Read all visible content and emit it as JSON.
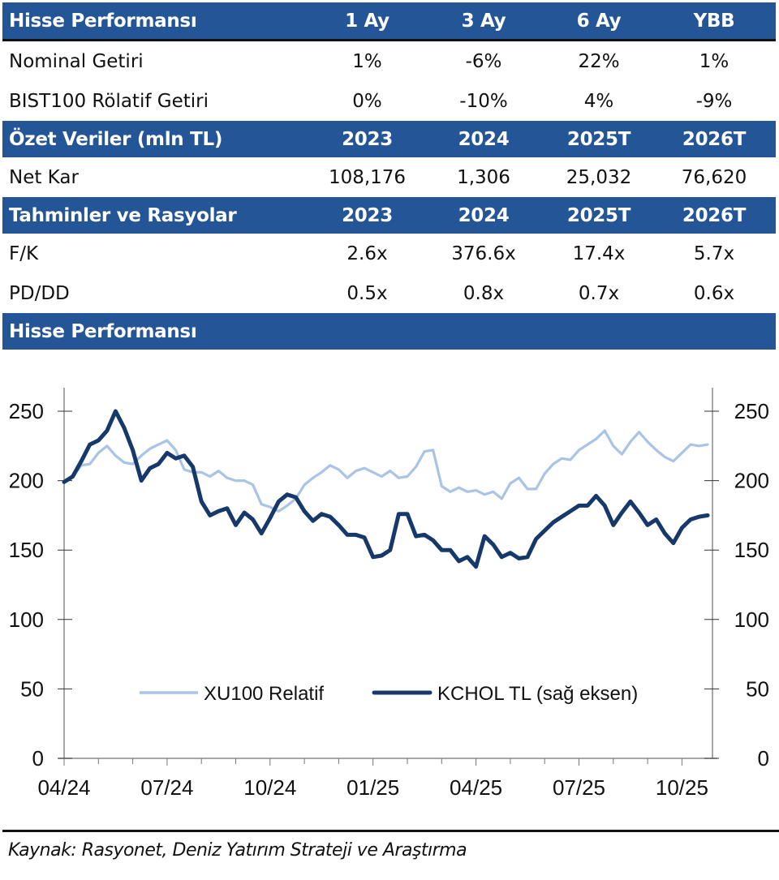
{
  "performance_table": {
    "header": [
      "Hisse Performansı",
      "1 Ay",
      "3 Ay",
      "6 Ay",
      "YBB"
    ],
    "rows": [
      [
        "Nominal Getiri",
        "1%",
        "-6%",
        "22%",
        "1%"
      ],
      [
        "BIST100 Rölatif Getiri",
        "0%",
        "-10%",
        "4%",
        "-9%"
      ]
    ]
  },
  "summary_table": {
    "header": [
      "Özet Veriler (mln TL)",
      "2023",
      "2024",
      "2025T",
      "2026T"
    ],
    "rows": [
      [
        "Net Kar",
        "108,176",
        "1,306",
        "25,032",
        "76,620"
      ]
    ]
  },
  "ratios_table": {
    "header": [
      "Tahminler ve Rasyolar",
      "2023",
      "2024",
      "2025T",
      "2026T"
    ],
    "rows": [
      [
        "F/K",
        "2.6x",
        "376.6x",
        "17.4x",
        "5.7x"
      ],
      [
        "PD/DD",
        "0.5x",
        "0.8x",
        "0.7x",
        "0.6x"
      ]
    ]
  },
  "chart_section_title": "Hisse Performansı",
  "colors": {
    "band": "#245596",
    "xu100": "#a9c4e4",
    "kchol": "#17386b"
  },
  "chart_data": {
    "type": "line",
    "title": "Hisse Performansı",
    "xlabel": "",
    "ylabel_left": "",
    "ylabel_right": "",
    "x_tick_labels": [
      "04/24",
      "07/24",
      "10/24",
      "01/25",
      "04/25",
      "07/25",
      "10/25"
    ],
    "x_range": [
      "04/24",
      "11/25"
    ],
    "ylim_left": [
      0,
      250
    ],
    "ylim_right": [
      0,
      250
    ],
    "y_ticks": [
      0,
      50,
      100,
      150,
      200,
      250
    ],
    "legend": [
      "XU100 Relatif",
      "KCHOL TL (sağ eksen)"
    ],
    "legend_position": "bottom-center inside plot",
    "grid": false,
    "x_months_from_start": [
      0,
      0.25,
      0.5,
      0.75,
      1.0,
      1.25,
      1.5,
      1.75,
      2.0,
      2.25,
      2.5,
      2.75,
      3.0,
      3.25,
      3.5,
      3.75,
      4.0,
      4.25,
      4.5,
      4.75,
      5.0,
      5.25,
      5.5,
      5.75,
      6.0,
      6.25,
      6.5,
      6.75,
      7.0,
      7.25,
      7.5,
      7.75,
      8.0,
      8.25,
      8.5,
      8.75,
      9.0,
      9.25,
      9.5,
      9.75,
      10.0,
      10.25,
      10.5,
      10.75,
      11.0,
      11.25,
      11.5,
      11.75,
      12.0,
      12.25,
      12.5,
      12.75,
      13.0,
      13.25,
      13.5,
      13.75,
      14.0,
      14.25,
      14.5,
      14.75,
      15.0,
      15.25,
      15.5,
      15.75,
      16.0,
      16.25,
      16.5,
      16.75,
      17.0,
      17.25,
      17.5,
      17.75,
      18.0,
      18.25,
      18.5,
      18.75
    ],
    "series": [
      {
        "name": "XU100 Relatif",
        "axis": "left",
        "values": [
          200,
          203,
          211,
          212,
          220,
          225,
          218,
          213,
          212,
          218,
          223,
          226,
          229,
          222,
          208,
          206,
          206,
          203,
          207,
          202,
          200,
          200,
          197,
          183,
          181,
          178,
          182,
          187,
          197,
          202,
          206,
          211,
          208,
          202,
          207,
          209,
          206,
          203,
          207,
          202,
          203,
          210,
          221,
          222,
          196,
          192,
          195,
          192,
          193,
          190,
          192,
          187,
          198,
          202,
          194,
          194,
          205,
          212,
          216,
          215,
          222,
          226,
          230,
          236,
          225,
          219,
          228,
          235,
          228,
          222,
          217,
          214,
          220,
          226,
          225,
          226
        ]
      },
      {
        "name": "KCHOL TL (sağ eksen)",
        "axis": "right",
        "values": [
          199,
          203,
          214,
          226,
          229,
          236,
          250,
          238,
          222,
          200,
          209,
          212,
          220,
          216,
          218,
          210,
          185,
          175,
          178,
          180,
          168,
          177,
          172,
          162,
          173,
          185,
          190,
          188,
          178,
          171,
          176,
          174,
          168,
          161,
          161,
          159,
          145,
          146,
          150,
          176,
          176,
          160,
          161,
          157,
          150,
          150,
          142,
          145,
          138,
          160,
          154,
          145,
          148,
          144,
          145,
          158,
          164,
          170,
          174,
          178,
          182,
          182,
          189,
          182,
          168,
          177,
          185,
          177,
          168,
          172,
          162,
          155,
          166,
          172,
          174,
          175
        ]
      }
    ]
  },
  "source_note": "Kaynak: Rasyonet, Deniz Yatırım Strateji ve Araştırma"
}
